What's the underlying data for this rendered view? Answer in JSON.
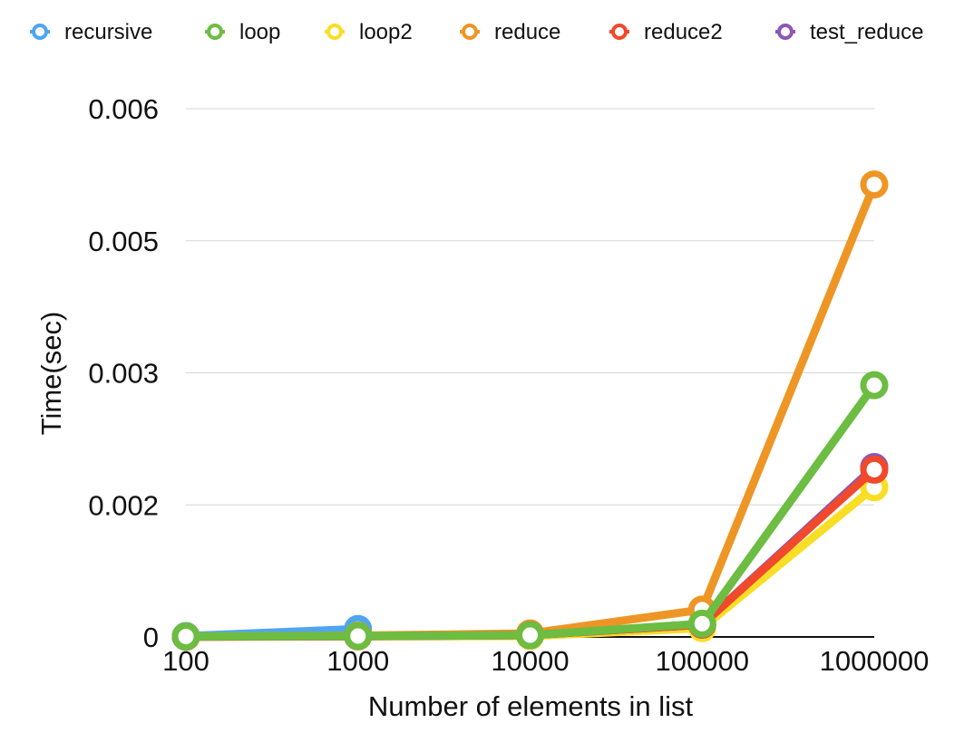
{
  "chart_data": {
    "type": "line",
    "title": "",
    "xlabel": "Number of elements in list",
    "ylabel": "Time(sec)",
    "categories": [
      "100",
      "1000",
      "10000",
      "100000",
      "1000000"
    ],
    "y_ticks": [
      "0",
      "0.002",
      "0.003",
      "0.005",
      "0.006"
    ],
    "ylim": [
      0,
      0.006
    ],
    "grid": true,
    "legend_position": "top",
    "series": [
      {
        "name": "recursive",
        "color": "#4ea6f1",
        "values": [
          1e-05,
          9e-05,
          null,
          null,
          null
        ]
      },
      {
        "name": "loop",
        "color": "#6cbd42",
        "values": [
          5e-06,
          1e-05,
          2e-05,
          0.00015,
          0.00286
        ]
      },
      {
        "name": "loop2",
        "color": "#f8de25",
        "values": [
          2e-06,
          5e-06,
          1e-05,
          0.0001,
          0.0017
        ]
      },
      {
        "name": "reduce",
        "color": "#ee9625",
        "values": [
          5e-06,
          1.5e-05,
          4e-05,
          0.00031,
          0.00514
        ]
      },
      {
        "name": "reduce2",
        "color": "#f0492c",
        "values": [
          3e-06,
          8e-06,
          2e-05,
          0.00014,
          0.0019
        ]
      },
      {
        "name": "test_reduce",
        "color": "#8a58b5",
        "values": [
          3e-06,
          8e-06,
          2e-05,
          0.00014,
          0.00193
        ]
      }
    ]
  }
}
